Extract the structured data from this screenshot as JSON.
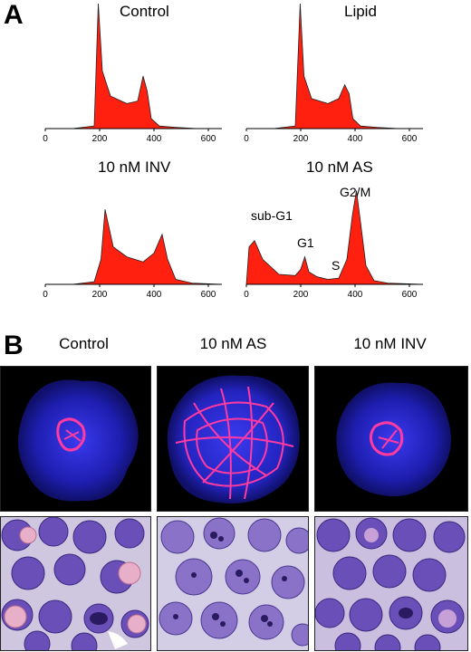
{
  "panel_a": {
    "letter": "A",
    "histograms": [
      {
        "title": "Control",
        "x_ticks": [
          "0",
          "200",
          "400",
          "600"
        ]
      },
      {
        "title": "Lipid",
        "x_ticks": [
          "0",
          "200",
          "400",
          "600"
        ]
      },
      {
        "title": "10 nM INV",
        "x_ticks": [
          "0",
          "200",
          "400",
          "600"
        ]
      },
      {
        "title": "10 nM AS",
        "x_ticks": [
          "0",
          "200",
          "400",
          "600"
        ],
        "peak_labels": {
          "subg1": "sub-G1",
          "g1": "G1",
          "s": "S",
          "g2m": "G2/M"
        }
      }
    ]
  },
  "panel_b": {
    "letter": "B",
    "columns": [
      "Control",
      "10 nM AS",
      "10 nM INV"
    ]
  },
  "colors": {
    "histogram_fill": "#ff2010",
    "nucleus_blue": "#2a2ad8",
    "microtubule_pink": "#ff3aa0",
    "cell_purple": "#6a4fb8"
  },
  "chart_data": [
    {
      "type": "area",
      "title": "Control",
      "xlim": [
        0,
        650
      ],
      "x": [
        0,
        100,
        180,
        195,
        210,
        240,
        300,
        340,
        360,
        375,
        390,
        420,
        480,
        560,
        650
      ],
      "values": [
        0,
        0,
        2,
        100,
        46,
        26,
        20,
        22,
        42,
        30,
        8,
        2,
        1,
        0,
        0
      ]
    },
    {
      "type": "area",
      "title": "Lipid",
      "xlim": [
        0,
        650
      ],
      "x": [
        0,
        100,
        180,
        198,
        212,
        240,
        300,
        340,
        362,
        378,
        392,
        420,
        480,
        560,
        650
      ],
      "values": [
        0,
        0,
        2,
        100,
        42,
        24,
        20,
        24,
        35,
        28,
        8,
        2,
        1,
        0,
        0
      ]
    },
    {
      "type": "area",
      "title": "10 nM INV",
      "xlim": [
        0,
        650
      ],
      "x": [
        0,
        100,
        180,
        205,
        220,
        250,
        300,
        360,
        400,
        430,
        450,
        480,
        540,
        650
      ],
      "values": [
        0,
        0,
        2,
        20,
        60,
        30,
        22,
        18,
        25,
        40,
        20,
        4,
        1,
        0
      ]
    },
    {
      "type": "area",
      "title": "10 nM AS",
      "xlim": [
        0,
        650
      ],
      "x": [
        0,
        10,
        30,
        60,
        120,
        180,
        200,
        215,
        230,
        260,
        300,
        340,
        370,
        390,
        405,
        420,
        440,
        470,
        520,
        650
      ],
      "values": [
        0,
        30,
        35,
        20,
        8,
        7,
        12,
        22,
        10,
        6,
        4,
        5,
        20,
        55,
        75,
        50,
        15,
        3,
        1,
        0
      ]
    }
  ]
}
